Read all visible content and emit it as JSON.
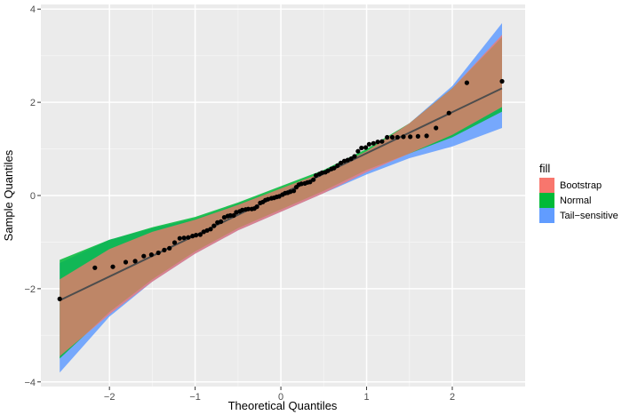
{
  "chart_data": {
    "type": "scatter",
    "title": "",
    "xlabel": "Theoretical Quantiles",
    "ylabel": "Sample Quantiles",
    "xlim": [
      -2.8,
      2.85
    ],
    "ylim": [
      -4.1,
      4.1
    ],
    "xticks": [
      -2,
      -1,
      0,
      1,
      2
    ],
    "xtick_labels": [
      "−2",
      "−1",
      "0",
      "1",
      "2"
    ],
    "yticks": [
      -4,
      -2,
      0,
      2,
      4
    ],
    "ytick_labels": [
      "−4",
      "−2",
      "0",
      "2",
      "4"
    ],
    "grid": true,
    "legend": {
      "title": "fill",
      "position": "right",
      "entries": [
        {
          "label": "Bootstrap",
          "color": "#F8766D"
        },
        {
          "label": "Normal",
          "color": "#00BA38"
        },
        {
          "label": "Tail−sensitive",
          "color": "#619CFF"
        }
      ]
    },
    "reference_line": {
      "x": [
        -2.58,
        2.58
      ],
      "y": [
        -2.25,
        2.3
      ],
      "color": "#4d4d4d"
    },
    "bands": [
      {
        "name": "Tail−sensitive",
        "color": "#619CFF",
        "opacity": 0.85,
        "x": [
          -2.58,
          -2.0,
          -1.5,
          -1.0,
          -0.5,
          0.0,
          0.5,
          1.0,
          1.5,
          2.0,
          2.58
        ],
        "upper": [
          -1.45,
          -0.95,
          -0.7,
          -0.5,
          -0.18,
          0.15,
          0.5,
          0.95,
          1.55,
          2.35,
          3.7
        ],
        "lower": [
          -3.8,
          -2.6,
          -1.85,
          -1.25,
          -0.75,
          -0.35,
          0.05,
          0.45,
          0.8,
          1.05,
          1.45
        ]
      },
      {
        "name": "Normal",
        "color": "#00BA38",
        "opacity": 0.85,
        "x": [
          -2.58,
          -2.0,
          -1.5,
          -1.0,
          -0.5,
          0.0,
          0.5,
          1.0,
          1.5,
          2.0,
          2.58
        ],
        "upper": [
          -1.38,
          -0.95,
          -0.68,
          -0.46,
          -0.15,
          0.2,
          0.55,
          1.0,
          1.55,
          2.3,
          3.4
        ],
        "lower": [
          -3.5,
          -2.5,
          -1.8,
          -1.2,
          -0.7,
          -0.3,
          0.1,
          0.55,
          0.9,
          1.25,
          1.8
        ]
      },
      {
        "name": "Bootstrap",
        "color": "#F8766D",
        "opacity": 0.75,
        "x": [
          -2.58,
          -2.0,
          -1.5,
          -1.0,
          -0.5,
          0.0,
          0.5,
          1.0,
          1.5,
          2.0,
          2.58
        ],
        "upper": [
          -1.8,
          -1.15,
          -0.78,
          -0.52,
          -0.2,
          0.15,
          0.5,
          0.95,
          1.55,
          2.3,
          3.45
        ],
        "lower": [
          -3.45,
          -2.55,
          -1.85,
          -1.25,
          -0.75,
          -0.35,
          0.05,
          0.5,
          0.9,
          1.3,
          1.9
        ]
      }
    ],
    "points": {
      "x": [
        -2.58,
        -2.17,
        -1.96,
        -1.81,
        -1.7,
        -1.6,
        -1.51,
        -1.43,
        -1.36,
        -1.3,
        -1.24,
        -1.18,
        -1.13,
        -1.08,
        -1.03,
        -0.99,
        -0.94,
        -0.9,
        -0.86,
        -0.82,
        -0.78,
        -0.74,
        -0.7,
        -0.66,
        -0.62,
        -0.59,
        -0.55,
        -0.52,
        -0.48,
        -0.45,
        -0.41,
        -0.38,
        -0.34,
        -0.31,
        -0.28,
        -0.24,
        -0.21,
        -0.18,
        -0.15,
        -0.11,
        -0.08,
        -0.05,
        -0.02,
        0.02,
        0.05,
        0.08,
        0.11,
        0.15,
        0.18,
        0.21,
        0.24,
        0.28,
        0.31,
        0.34,
        0.38,
        0.41,
        0.45,
        0.48,
        0.52,
        0.55,
        0.59,
        0.62,
        0.66,
        0.7,
        0.74,
        0.78,
        0.82,
        0.86,
        0.9,
        0.94,
        0.99,
        1.03,
        1.08,
        1.13,
        1.18,
        1.24,
        1.3,
        1.36,
        1.43,
        1.51,
        1.6,
        1.7,
        1.81,
        1.96,
        2.17,
        2.58
      ],
      "y": [
        -2.22,
        -1.55,
        -1.53,
        -1.43,
        -1.41,
        -1.3,
        -1.27,
        -1.23,
        -1.17,
        -1.13,
        -1.01,
        -0.92,
        -0.91,
        -0.9,
        -0.87,
        -0.85,
        -0.84,
        -0.78,
        -0.75,
        -0.72,
        -0.65,
        -0.58,
        -0.56,
        -0.47,
        -0.44,
        -0.43,
        -0.43,
        -0.36,
        -0.34,
        -0.31,
        -0.3,
        -0.29,
        -0.29,
        -0.28,
        -0.24,
        -0.16,
        -0.14,
        -0.1,
        -0.08,
        -0.06,
        -0.05,
        -0.03,
        -0.02,
        0.02,
        0.05,
        0.06,
        0.08,
        0.1,
        0.18,
        0.23,
        0.25,
        0.26,
        0.28,
        0.29,
        0.34,
        0.43,
        0.46,
        0.49,
        0.5,
        0.53,
        0.57,
        0.59,
        0.64,
        0.7,
        0.74,
        0.76,
        0.79,
        0.84,
        0.95,
        1.02,
        1.03,
        1.1,
        1.12,
        1.15,
        1.16,
        1.25,
        1.25,
        1.25,
        1.26,
        1.26,
        1.27,
        1.28,
        1.45,
        1.77,
        2.42,
        2.45
      ],
      "color": "#000000"
    }
  }
}
